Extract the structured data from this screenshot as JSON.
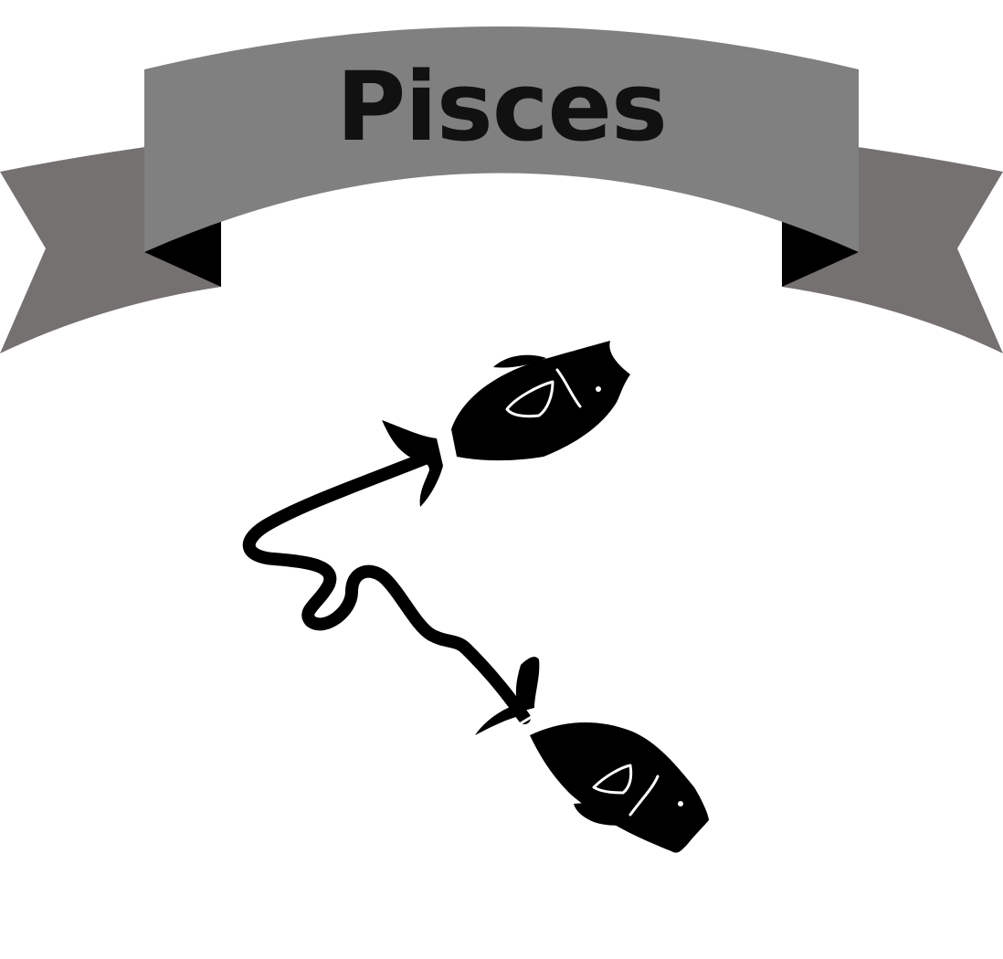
{
  "banner": {
    "title": "Pisces",
    "ribbon_color": "#808080",
    "ribbon_tail_color": "#747170",
    "fold_color": "#000000",
    "text_color": "#111111"
  },
  "illustration": {
    "icon": "pisces-two-fish-icon",
    "fill_color": "#000000"
  }
}
